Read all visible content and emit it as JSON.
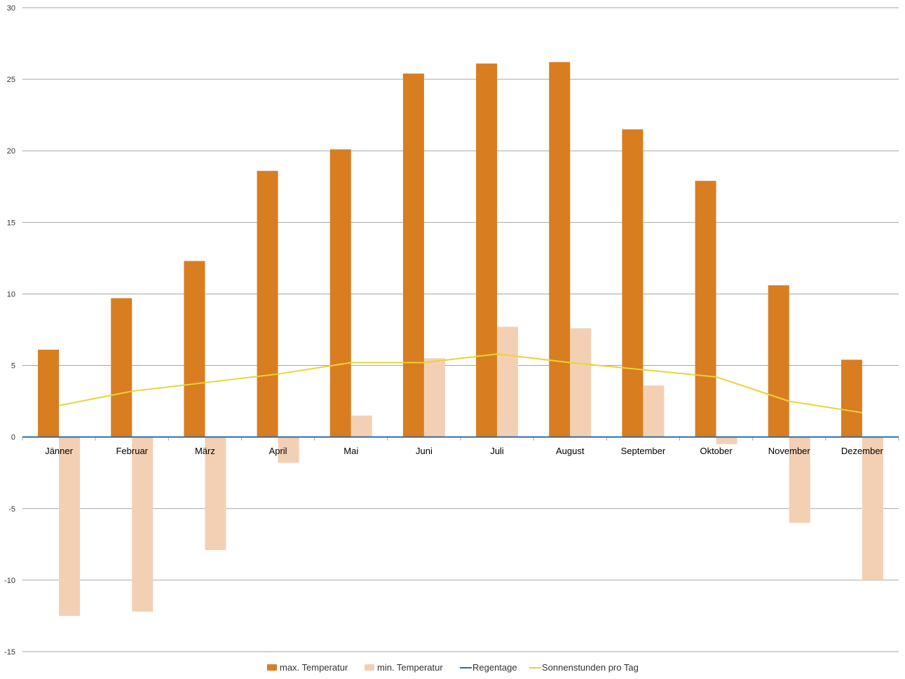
{
  "chart_data": {
    "type": "bar",
    "categories": [
      "Jänner",
      "Februar",
      "März",
      "April",
      "Mai",
      "Juni",
      "Juli",
      "August",
      "September",
      "Oktober",
      "November",
      "Dezember"
    ],
    "series": [
      {
        "name": "max. Temperatur",
        "kind": "bar",
        "color": "#d97d21",
        "values": [
          6.1,
          9.7,
          12.3,
          18.6,
          20.1,
          25.4,
          26.1,
          26.2,
          21.5,
          17.9,
          10.6,
          5.4
        ]
      },
      {
        "name": "min. Temperatur",
        "kind": "bar",
        "color": "#f3d0b4",
        "values": [
          -12.5,
          -12.2,
          -7.9,
          -1.8,
          1.5,
          5.5,
          7.7,
          7.6,
          3.6,
          -0.5,
          -6.0,
          -10.0
        ]
      },
      {
        "name": "Regentage",
        "kind": "line",
        "color": "#2e6da4",
        "values": [
          0,
          0,
          0,
          0,
          0,
          0,
          0,
          0,
          0,
          0,
          0,
          0
        ]
      },
      {
        "name": "Sonnenstunden pro Tag",
        "kind": "line",
        "color": "#e8d43a",
        "values": [
          2.2,
          3.2,
          3.8,
          4.4,
          5.2,
          5.2,
          5.8,
          5.2,
          4.7,
          4.2,
          2.5,
          1.7
        ]
      }
    ],
    "ylim": [
      -15,
      30
    ],
    "yticks": [
      -15,
      -10,
      -5,
      0,
      5,
      10,
      15,
      20,
      25,
      30
    ],
    "grid": true,
    "legend_position": "bottom"
  }
}
